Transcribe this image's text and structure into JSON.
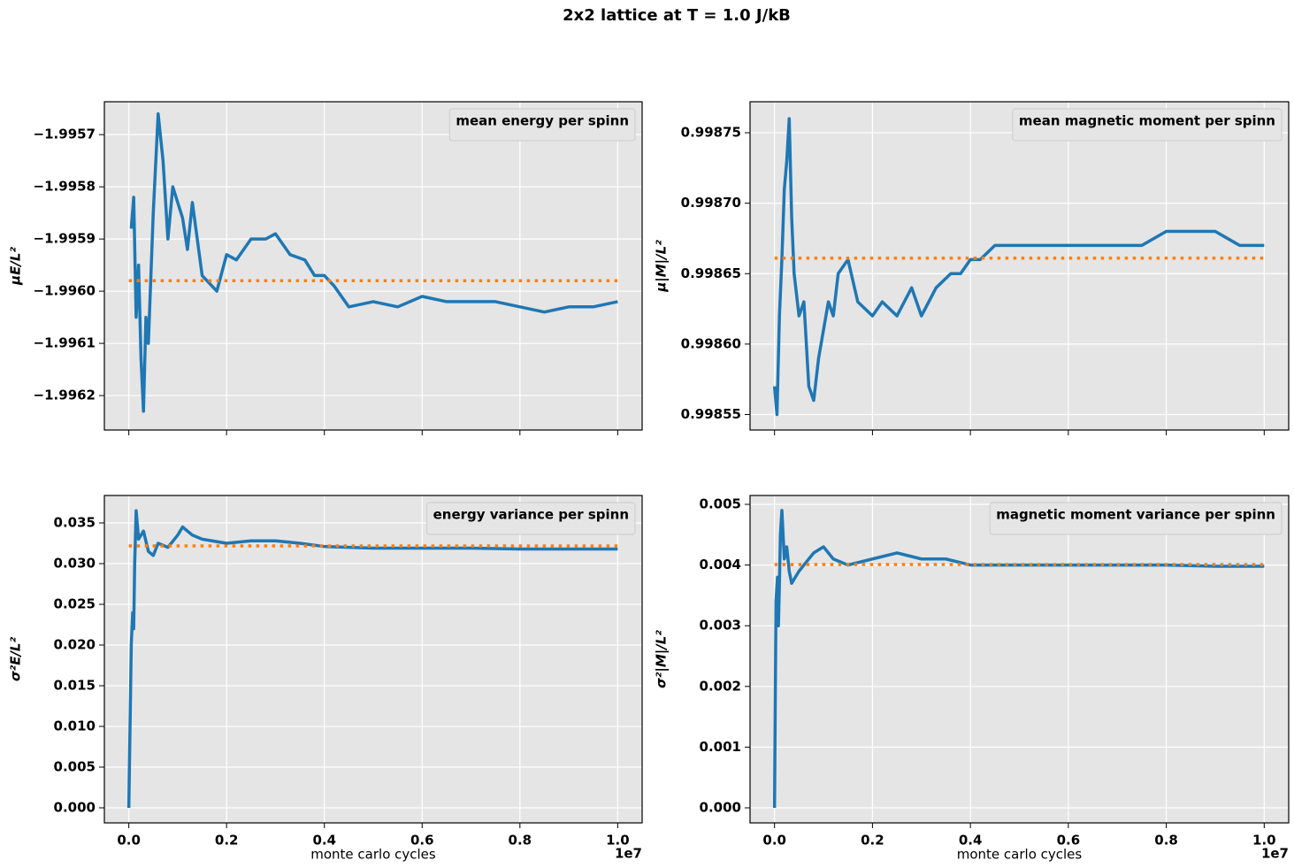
{
  "title": "2x2 lattice at T = 1.0 J/kB",
  "chart_data": [
    {
      "type": "line",
      "ylabel": "μE/L²",
      "legend_loc": "upper right",
      "grid": true,
      "xlim": [
        -0.05,
        1.05
      ],
      "xticks": [
        0,
        0.2,
        0.4,
        0.6,
        0.8,
        1
      ],
      "ylim": [
        -1.996266,
        -1.995637
      ],
      "yticks": [
        {
          "value": -1.9957,
          "label": "−1.9957"
        },
        {
          "value": -1.9958,
          "label": "−1.9958"
        },
        {
          "value": -1.9959,
          "label": "−1.9959"
        },
        {
          "value": -1.996,
          "label": "−1.9960"
        },
        {
          "value": -1.9961,
          "label": "−1.9961"
        },
        {
          "value": -1.9962,
          "label": "−1.9962"
        }
      ],
      "series": [
        {
          "name": "mean energy per spinn",
          "color": "#1f77b4",
          "linestyle": "solid",
          "x": [
            0.005,
            0.01,
            0.015,
            0.02,
            0.025,
            0.03,
            0.035,
            0.04,
            0.05,
            0.06,
            0.07,
            0.08,
            0.09,
            0.1,
            0.11,
            0.12,
            0.13,
            0.15,
            0.18,
            0.2,
            0.22,
            0.25,
            0.28,
            0.3,
            0.33,
            0.36,
            0.38,
            0.4,
            0.42,
            0.45,
            0.5,
            0.55,
            0.6,
            0.65,
            0.7,
            0.75,
            0.8,
            0.85,
            0.9,
            0.95,
            1.0
          ],
          "values": [
            -1.99588,
            -1.99582,
            -1.99605,
            -1.99595,
            -1.99613,
            -1.99623,
            -1.99605,
            -1.9961,
            -1.99585,
            -1.99566,
            -1.99575,
            -1.9959,
            -1.9958,
            -1.99583,
            -1.99586,
            -1.99592,
            -1.99583,
            -1.99597,
            -1.996,
            -1.99593,
            -1.99594,
            -1.9959,
            -1.9959,
            -1.99589,
            -1.99593,
            -1.99594,
            -1.99597,
            -1.99597,
            -1.99599,
            -1.99603,
            -1.99602,
            -1.99603,
            -1.99601,
            -1.99602,
            -1.99602,
            -1.99602,
            -1.99603,
            -1.99604,
            -1.99603,
            -1.99603,
            -1.99602
          ]
        },
        {
          "color": "#ff7f0e",
          "linestyle": "dotted",
          "x": [
            0,
            1.0
          ],
          "values": [
            -1.99598,
            -1.99598
          ]
        }
      ]
    },
    {
      "type": "line",
      "ylabel": "μ|M|/L²",
      "legend_loc": "upper right",
      "grid": true,
      "xlim": [
        -0.05,
        1.05
      ],
      "xticks": [
        0,
        0.2,
        0.4,
        0.6,
        0.8,
        1
      ],
      "ylim": [
        0.998539,
        0.998772
      ],
      "yticks": [
        {
          "value": 0.99855,
          "label": "0.99855"
        },
        {
          "value": 0.9986,
          "label": "0.99860"
        },
        {
          "value": 0.99865,
          "label": "0.99865"
        },
        {
          "value": 0.9987,
          "label": "0.99870"
        },
        {
          "value": 0.99875,
          "label": "0.99875"
        }
      ],
      "series": [
        {
          "name": "mean magnetic moment per spinn",
          "color": "#1f77b4",
          "linestyle": "solid",
          "x": [
            0,
            0.005,
            0.01,
            0.015,
            0.02,
            0.025,
            0.03,
            0.035,
            0.04,
            0.05,
            0.06,
            0.07,
            0.08,
            0.09,
            0.1,
            0.11,
            0.12,
            0.13,
            0.15,
            0.17,
            0.2,
            0.22,
            0.25,
            0.28,
            0.3,
            0.33,
            0.36,
            0.38,
            0.4,
            0.42,
            0.45,
            0.5,
            0.55,
            0.6,
            0.65,
            0.7,
            0.75,
            0.8,
            0.85,
            0.9,
            0.95,
            1.0
          ],
          "values": [
            0.99857,
            0.99855,
            0.99862,
            0.99866,
            0.99871,
            0.99873,
            0.99876,
            0.99869,
            0.99865,
            0.99862,
            0.99863,
            0.99857,
            0.99856,
            0.99859,
            0.99861,
            0.99863,
            0.99862,
            0.99865,
            0.99866,
            0.99863,
            0.99862,
            0.99863,
            0.99862,
            0.99864,
            0.99862,
            0.99864,
            0.99865,
            0.99865,
            0.99866,
            0.99866,
            0.99867,
            0.99867,
            0.99867,
            0.99867,
            0.99867,
            0.99867,
            0.99867,
            0.99868,
            0.99868,
            0.99868,
            0.99867,
            0.99867
          ]
        },
        {
          "color": "#ff7f0e",
          "linestyle": "dotted",
          "x": [
            0,
            1.0
          ],
          "values": [
            0.998661,
            0.998661
          ]
        }
      ]
    },
    {
      "type": "line",
      "ylabel": "σ²E/L²",
      "xlabel": "monte carlo cycles",
      "x_offset": "1e7",
      "legend_loc": "upper right",
      "grid": true,
      "xlim": [
        -0.05,
        1.05
      ],
      "xticks": [
        {
          "value": 0,
          "label": "0.0"
        },
        {
          "value": 0.2,
          "label": "0.2"
        },
        {
          "value": 0.4,
          "label": "0.4"
        },
        {
          "value": 0.6,
          "label": "0.6"
        },
        {
          "value": 0.8,
          "label": "0.8"
        },
        {
          "value": 1,
          "label": "1.0"
        }
      ],
      "ylim": [
        -0.00185,
        0.03837
      ],
      "yticks": [
        {
          "value": 0,
          "label": "0.000"
        },
        {
          "value": 0.005,
          "label": "0.005"
        },
        {
          "value": 0.01,
          "label": "0.010"
        },
        {
          "value": 0.015,
          "label": "0.015"
        },
        {
          "value": 0.02,
          "label": "0.020"
        },
        {
          "value": 0.025,
          "label": "0.025"
        },
        {
          "value": 0.03,
          "label": "0.030"
        },
        {
          "value": 0.035,
          "label": "0.035"
        }
      ],
      "series": [
        {
          "name": "energy variance per spinn",
          "color": "#1f77b4",
          "linestyle": "solid",
          "x": [
            0,
            0.005,
            0.008,
            0.01,
            0.012,
            0.015,
            0.02,
            0.03,
            0.04,
            0.05,
            0.06,
            0.08,
            0.1,
            0.11,
            0.13,
            0.15,
            0.2,
            0.25,
            0.3,
            0.35,
            0.4,
            0.5,
            0.6,
            0.7,
            0.8,
            0.9,
            1.0
          ],
          "values": [
            0,
            0.02,
            0.024,
            0.022,
            0.03,
            0.0365,
            0.033,
            0.034,
            0.0315,
            0.031,
            0.0325,
            0.032,
            0.0335,
            0.0345,
            0.0335,
            0.033,
            0.0325,
            0.0328,
            0.0328,
            0.0325,
            0.0321,
            0.0319,
            0.0319,
            0.0319,
            0.0318,
            0.0318,
            0.0318
          ]
        },
        {
          "color": "#ff7f0e",
          "linestyle": "dotted",
          "x": [
            0,
            1.0
          ],
          "values": [
            0.03217,
            0.03217
          ]
        }
      ]
    },
    {
      "type": "line",
      "ylabel": "σ²|M|/L²",
      "xlabel": "monte carlo cycles",
      "x_offset": "1e7",
      "legend_loc": "upper right",
      "grid": true,
      "xlim": [
        -0.05,
        1.05
      ],
      "xticks": [
        {
          "value": 0,
          "label": "0.0"
        },
        {
          "value": 0.2,
          "label": "0.2"
        },
        {
          "value": 0.4,
          "label": "0.4"
        },
        {
          "value": 0.6,
          "label": "0.6"
        },
        {
          "value": 0.8,
          "label": "0.8"
        },
        {
          "value": 1,
          "label": "1.0"
        }
      ],
      "ylim": [
        -0.000248,
        0.005146
      ],
      "yticks": [
        {
          "value": 0,
          "label": "0.000"
        },
        {
          "value": 0.001,
          "label": "0.001"
        },
        {
          "value": 0.002,
          "label": "0.002"
        },
        {
          "value": 0.003,
          "label": "0.003"
        },
        {
          "value": 0.004,
          "label": "0.004"
        },
        {
          "value": 0.005,
          "label": "0.005"
        }
      ],
      "series": [
        {
          "name": "magnetic moment variance per spinn",
          "color": "#1f77b4",
          "linestyle": "solid",
          "x": [
            0,
            0.003,
            0.006,
            0.008,
            0.01,
            0.012,
            0.015,
            0.02,
            0.025,
            0.03,
            0.035,
            0.05,
            0.06,
            0.08,
            0.1,
            0.12,
            0.15,
            0.2,
            0.25,
            0.3,
            0.35,
            0.4,
            0.5,
            0.6,
            0.7,
            0.8,
            0.9,
            1.0
          ],
          "values": [
            0,
            0.0034,
            0.0038,
            0.003,
            0.0037,
            0.0045,
            0.0049,
            0.0041,
            0.0043,
            0.0039,
            0.0037,
            0.0039,
            0.004,
            0.0042,
            0.0043,
            0.0041,
            0.004,
            0.0041,
            0.0042,
            0.0041,
            0.0041,
            0.004,
            0.004,
            0.004,
            0.004,
            0.004,
            0.00398,
            0.00398
          ]
        },
        {
          "color": "#ff7f0e",
          "linestyle": "dotted",
          "x": [
            0,
            1.0
          ],
          "values": [
            0.004009,
            0.004009
          ]
        }
      ]
    }
  ]
}
